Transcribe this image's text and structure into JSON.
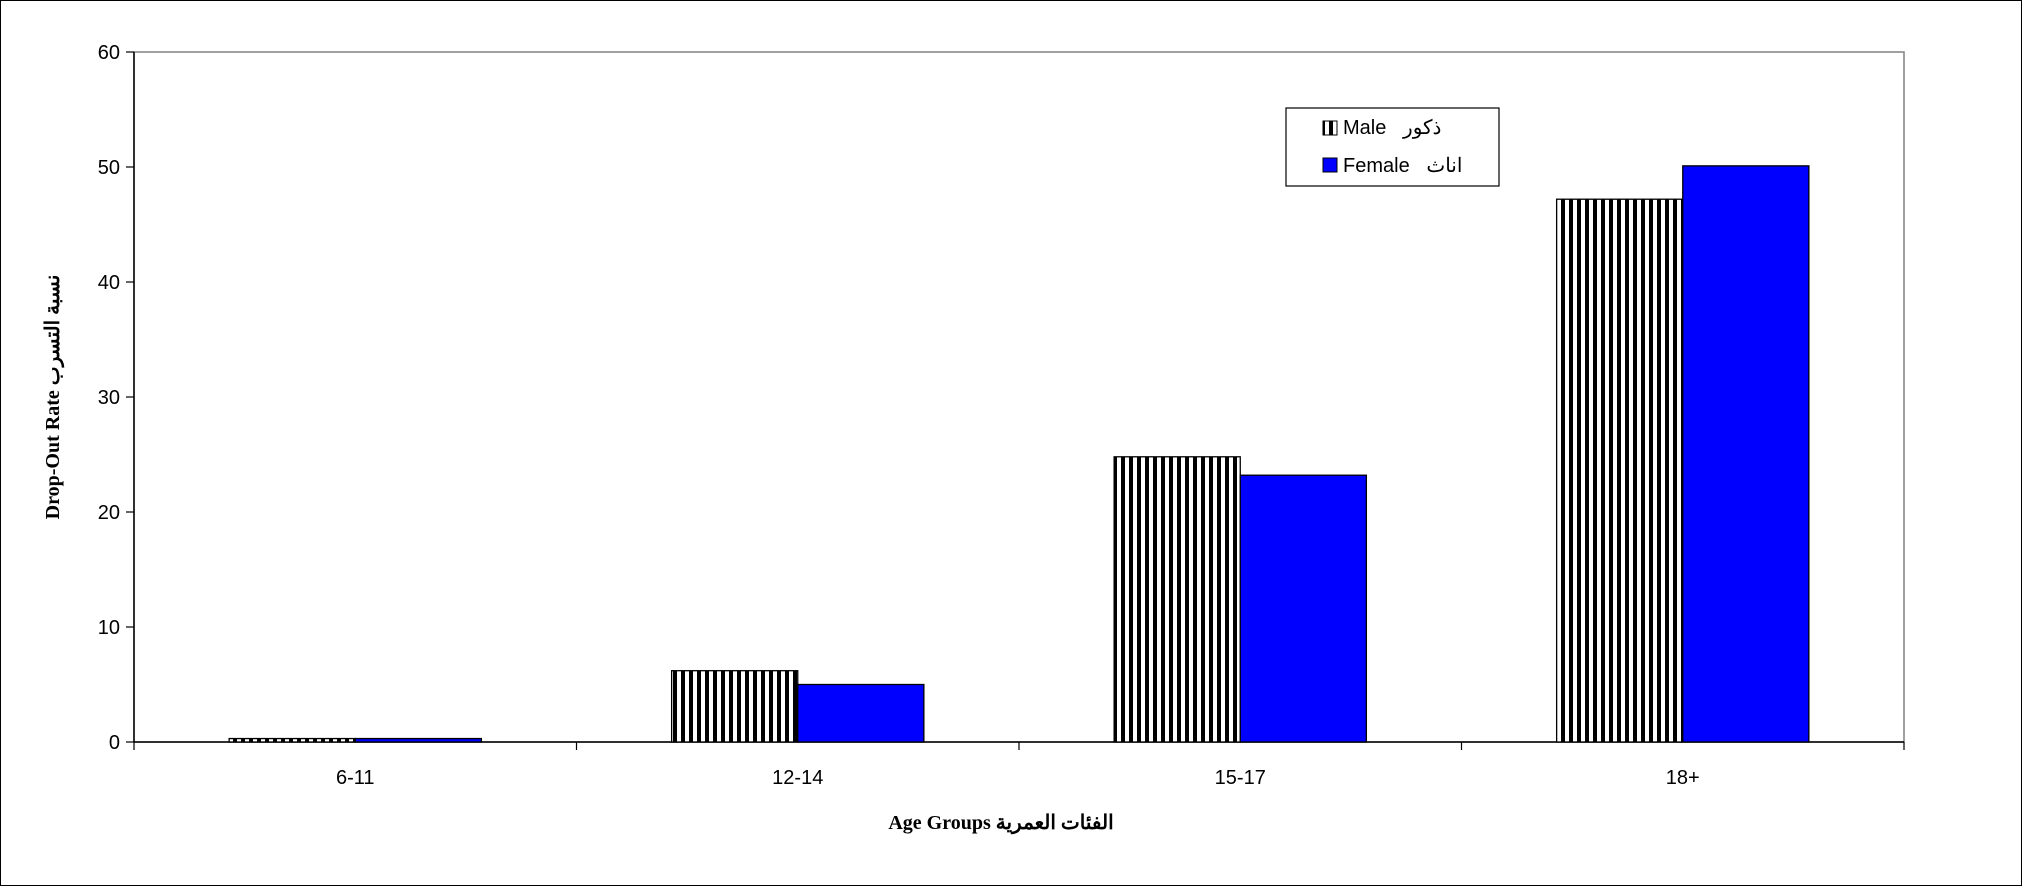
{
  "chart_data": {
    "type": "bar",
    "title": "",
    "xlabel": "Age Groups   الفئات العمرية",
    "ylabel": "Drop-Out Rate   نسبة التسرب",
    "categories": [
      "6-11",
      "12-14",
      "15-17",
      "18+"
    ],
    "ylim": [
      0,
      60
    ],
    "yticks": [
      0,
      10,
      20,
      30,
      40,
      50,
      60
    ],
    "grid": false,
    "legend_position": "top-right",
    "series": [
      {
        "name": "Male   ذكور",
        "values": [
          0.3,
          6.2,
          24.8,
          47.2
        ],
        "fill": "vertical-stripes",
        "color": "#000000"
      },
      {
        "name": "Female   اناث",
        "values": [
          0.3,
          5.0,
          23.2,
          50.1
        ],
        "fill": "solid",
        "color": "#0000ff"
      }
    ]
  }
}
